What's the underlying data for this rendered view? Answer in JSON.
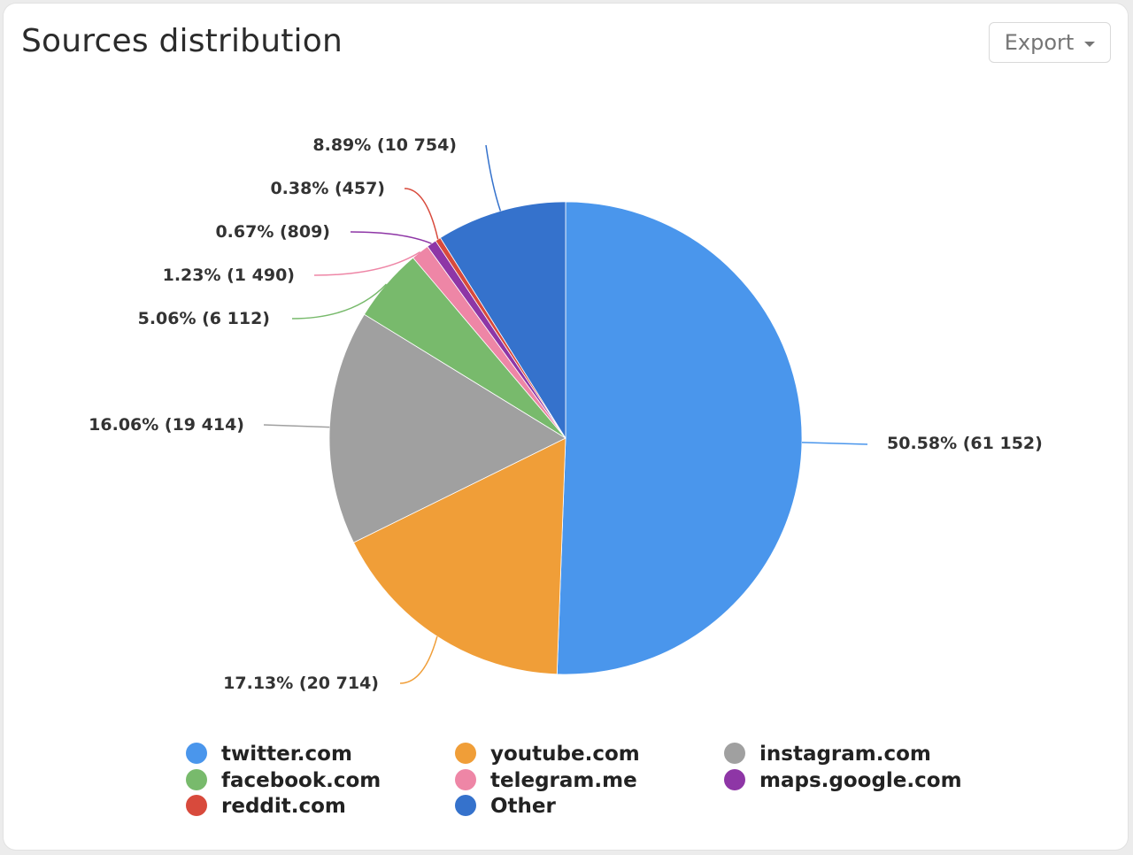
{
  "header": {
    "title": "Sources distribution",
    "export_label": "Export"
  },
  "chart_data": {
    "type": "pie",
    "title": "Sources distribution",
    "start_angle_deg": 0,
    "direction": "clockwise",
    "slices": [
      {
        "name": "twitter.com",
        "value": 61152,
        "percent": 50.58,
        "label": "50.58% (61 152)",
        "color": "#4a96ec"
      },
      {
        "name": "youtube.com",
        "value": 20714,
        "percent": 17.13,
        "label": "17.13% (20 714)",
        "color": "#f09e38"
      },
      {
        "name": "instagram.com",
        "value": 19414,
        "percent": 16.06,
        "label": "16.06% (19 414)",
        "color": "#a0a0a0"
      },
      {
        "name": "facebook.com",
        "value": 6112,
        "percent": 5.06,
        "label": "5.06% (6 112)",
        "color": "#78ba6c"
      },
      {
        "name": "telegram.me",
        "value": 1490,
        "percent": 1.23,
        "label": "1.23% (1 490)",
        "color": "#ee86a6"
      },
      {
        "name": "maps.google.com",
        "value": 809,
        "percent": 0.67,
        "label": "0.67% (809)",
        "color": "#8e36a6"
      },
      {
        "name": "reddit.com",
        "value": 457,
        "percent": 0.38,
        "label": "0.38% (457)",
        "color": "#d84a3c"
      },
      {
        "name": "Other",
        "value": 10754,
        "percent": 8.89,
        "label": "8.89% (10 754)",
        "color": "#3572cc"
      }
    ],
    "legend_position": "bottom",
    "legend_columns": 3
  }
}
